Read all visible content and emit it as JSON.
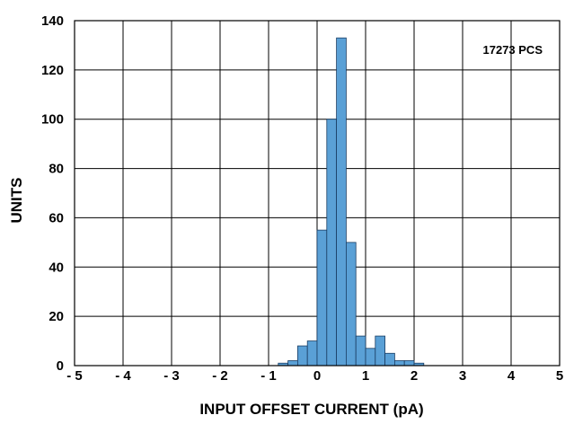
{
  "chart_data": {
    "type": "bar",
    "xlabel": "INPUT OFFSET CURRENT (pA)",
    "ylabel": "UNITS",
    "annotation": "17273 PCS",
    "xlim": [
      -5,
      5
    ],
    "ylim": [
      0,
      140
    ],
    "x_ticks": [
      -5,
      -4,
      -3,
      -2,
      -1,
      0,
      1,
      2,
      3,
      4,
      5
    ],
    "x_tick_labels": [
      "- 5",
      "- 4",
      "- 3",
      "- 2",
      "- 1",
      "0",
      "1",
      "2",
      "3",
      "4",
      "5"
    ],
    "y_ticks": [
      0,
      20,
      40,
      60,
      80,
      100,
      120,
      140
    ],
    "y_tick_labels": [
      "0",
      "20",
      "40",
      "60",
      "80",
      "100",
      "120",
      "140"
    ],
    "grid": true,
    "bar_color": "#5aa0d6",
    "bar_edge_color": "#1a3d63",
    "bin_width": 0.2,
    "bins": [
      {
        "x": -0.7,
        "value": 1
      },
      {
        "x": -0.5,
        "value": 2
      },
      {
        "x": -0.3,
        "value": 8
      },
      {
        "x": -0.1,
        "value": 10
      },
      {
        "x": 0.1,
        "value": 55
      },
      {
        "x": 0.3,
        "value": 100
      },
      {
        "x": 0.5,
        "value": 133
      },
      {
        "x": 0.7,
        "value": 50
      },
      {
        "x": 0.9,
        "value": 12
      },
      {
        "x": 1.1,
        "value": 7
      },
      {
        "x": 1.3,
        "value": 12
      },
      {
        "x": 1.5,
        "value": 5
      },
      {
        "x": 1.7,
        "value": 2
      },
      {
        "x": 1.9,
        "value": 2
      },
      {
        "x": 2.1,
        "value": 1
      }
    ]
  }
}
